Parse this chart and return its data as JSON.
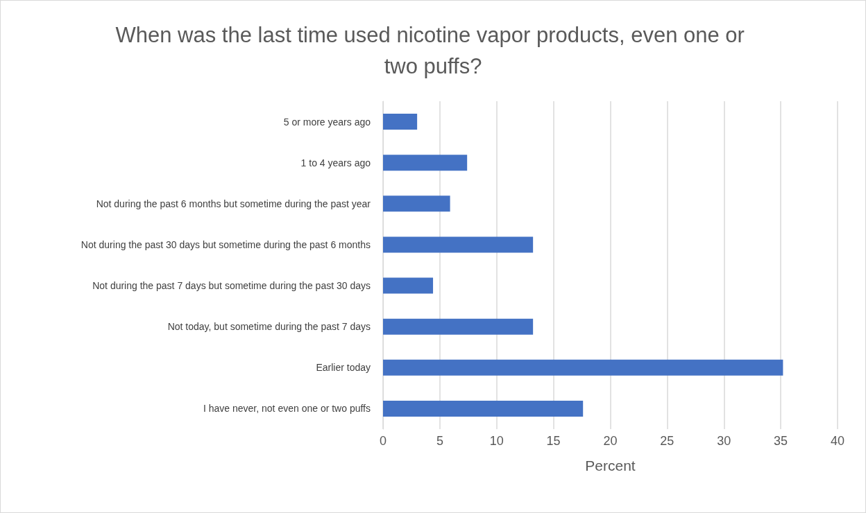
{
  "chart_data": {
    "type": "bar",
    "orientation": "horizontal",
    "title": "When was the last time used nicotine vapor products, even one or two puffs?",
    "xlabel": "Percent",
    "categories": [
      "5 or more years ago",
      "1 to 4 years ago",
      "Not during the past 6 months but sometime during the past year",
      "Not during the past 30 days but sometime during the past 6 months",
      "Not during the past 7 days but sometime during the past 30 days",
      "Not today, but sometime during the past 7 days",
      "Earlier today",
      "I have never, not even one or two puffs"
    ],
    "values": [
      3.0,
      7.4,
      5.9,
      13.2,
      4.4,
      13.2,
      35.2,
      17.6
    ],
    "color": "#4472c4",
    "xlim": [
      0,
      40
    ],
    "xticks": [
      0,
      5,
      10,
      15,
      20,
      25,
      30,
      35,
      40
    ],
    "grid": "x"
  }
}
